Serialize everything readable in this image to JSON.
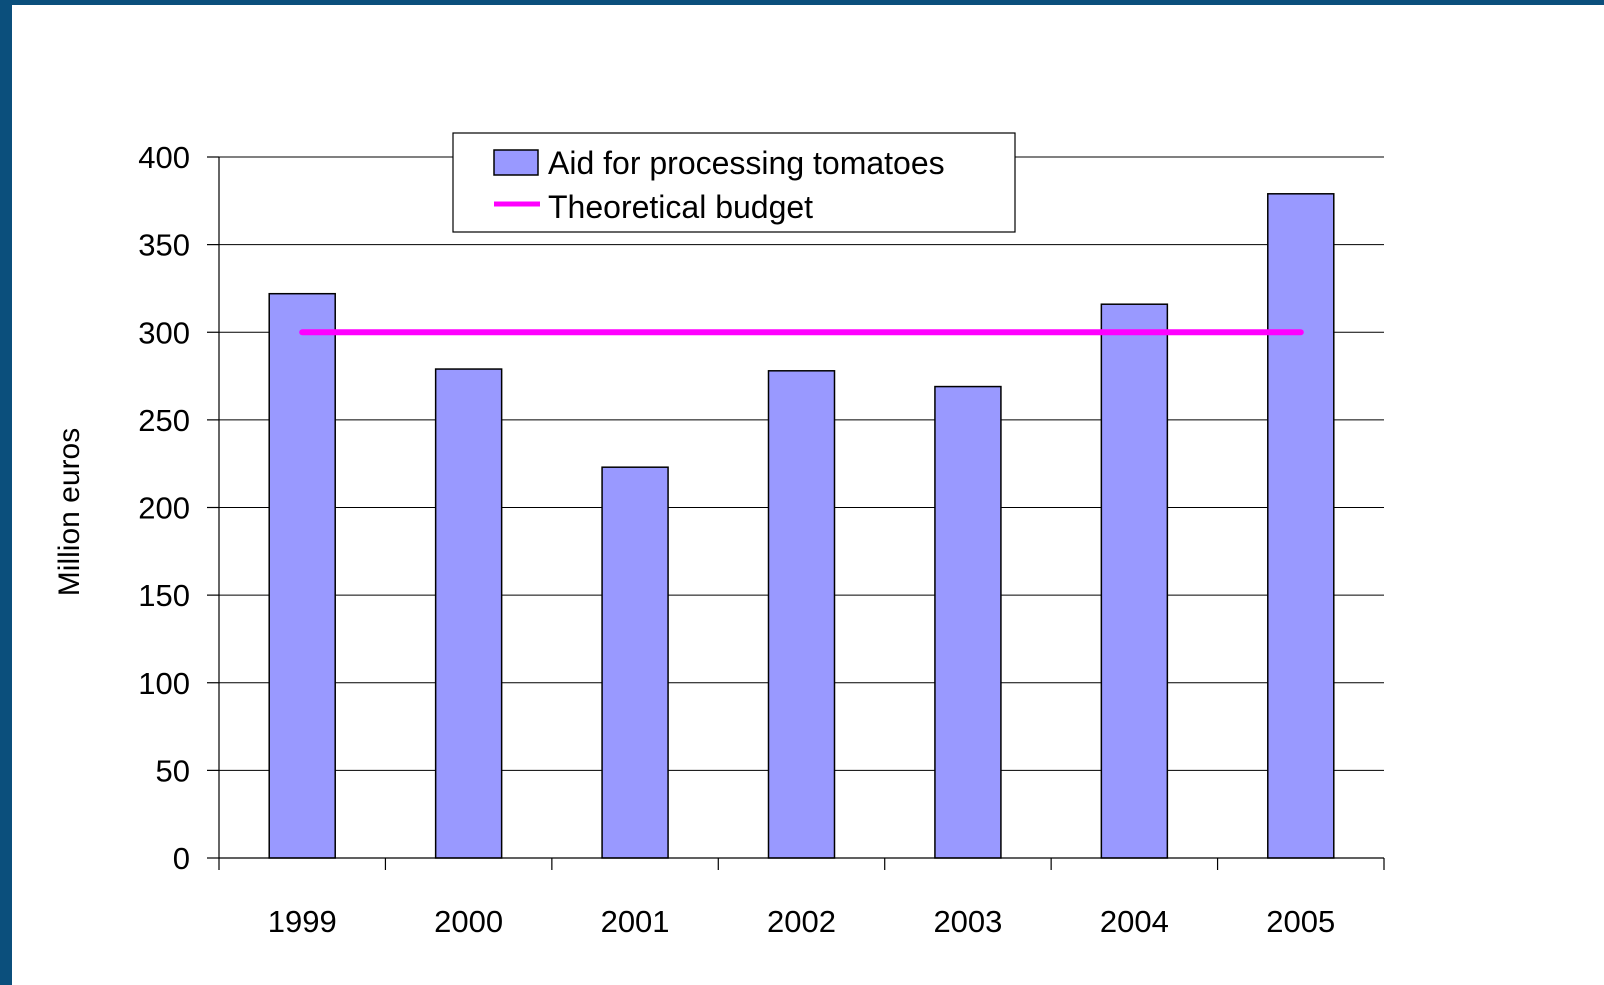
{
  "frame": {
    "border_color": "#0b4f7c"
  },
  "chart_data": {
    "type": "bar",
    "categories": [
      "1999",
      "2000",
      "2001",
      "2002",
      "2003",
      "2004",
      "2005"
    ],
    "series": [
      {
        "name": "Aid for processing tomatoes",
        "kind": "bar",
        "color": "#9999ff",
        "values": [
          322,
          279,
          223,
          278,
          269,
          316,
          379
        ]
      },
      {
        "name": "Theoretical budget",
        "kind": "line",
        "color": "#ff00ff",
        "values": [
          300,
          300,
          300,
          300,
          300,
          300,
          300
        ]
      }
    ],
    "ylabel": "Million euros",
    "ylim": [
      0,
      400
    ],
    "yticks": [
      "0",
      "50",
      "100",
      "150",
      "200",
      "250",
      "300",
      "350",
      "400"
    ],
    "grid": true,
    "legend": "top-center"
  }
}
